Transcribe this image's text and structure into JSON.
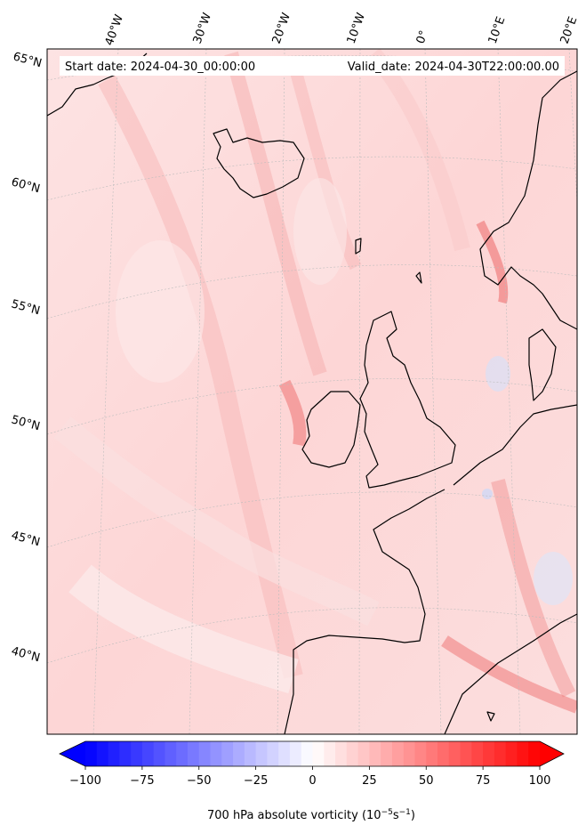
{
  "header": {
    "start_date": "Start date: 2024-04-30_00:00:00",
    "valid_date": "Valid_date: 2024-04-30T22:00:00.00"
  },
  "map": {
    "lon_labels": [
      "40°W",
      "30°W",
      "20°W",
      "10°W",
      "0°",
      "10°E",
      "20°E"
    ],
    "lat_labels": [
      "65°N",
      "60°N",
      "55°N",
      "50°N",
      "45°N",
      "40°N"
    ],
    "land_outline_color": "#000000",
    "gridline_color": "#bdbdbd"
  },
  "colorbar": {
    "title_prefix": "700 hPa absolute vorticity (10",
    "title_exp1": "−5",
    "title_mid": "s",
    "title_exp2": "−1",
    "title_suffix": ")",
    "tick_labels": [
      "−100",
      "−75",
      "−50",
      "−25",
      "0",
      "25",
      "50",
      "75",
      "100"
    ],
    "colors": {
      "min": "#0000ff",
      "mid": "#ffffff",
      "max": "#ff0000"
    }
  },
  "chart_data": {
    "type": "heatmap",
    "variable": "700 hPa absolute vorticity",
    "units": "10^-5 s^-1",
    "colorbar_range": [
      -100,
      100
    ],
    "colorbar_ticks": [
      -100,
      -75,
      -50,
      -25,
      0,
      25,
      50,
      75,
      100
    ],
    "colormap": "bwr",
    "longitude_ticks": [
      "40°W",
      "30°W",
      "20°W",
      "10°W",
      "0°",
      "10°E",
      "20°E"
    ],
    "latitude_ticks": [
      "65°N",
      "60°N",
      "55°N",
      "50°N",
      "45°N",
      "40°N"
    ],
    "extend": "both"
  }
}
